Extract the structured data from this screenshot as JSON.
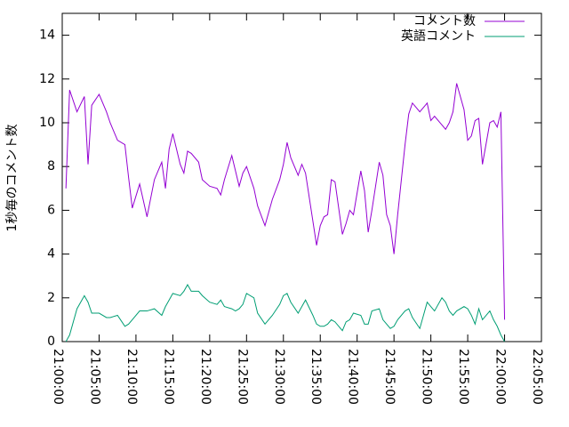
{
  "chart_data": {
    "type": "line",
    "ylabel": "1秒毎のコメント数",
    "x": [
      "21:00:30",
      "21:01:00",
      "21:02:00",
      "21:03:00",
      "21:03:30",
      "21:04:00",
      "21:05:00",
      "21:06:00",
      "21:06:30",
      "21:07:30",
      "21:08:30",
      "21:09:00",
      "21:09:30",
      "21:10:30",
      "21:11:30",
      "21:12:30",
      "21:13:30",
      "21:14:00",
      "21:14:30",
      "21:15:00",
      "21:16:00",
      "21:16:30",
      "21:17:00",
      "21:17:30",
      "21:18:30",
      "21:19:00",
      "21:20:00",
      "21:21:00",
      "21:21:30",
      "21:22:00",
      "21:23:00",
      "21:23:30",
      "21:24:00",
      "21:24:30",
      "21:25:00",
      "21:26:00",
      "21:26:30",
      "21:27:30",
      "21:28:30",
      "21:29:30",
      "21:30:00",
      "21:30:30",
      "21:31:00",
      "21:32:00",
      "21:32:30",
      "21:33:00",
      "21:34:00",
      "21:34:30",
      "21:35:00",
      "21:35:30",
      "21:36:00",
      "21:36:30",
      "21:37:00",
      "21:38:00",
      "21:38:30",
      "21:39:00",
      "21:39:30",
      "21:40:30",
      "21:41:00",
      "21:41:30",
      "21:42:00",
      "21:43:00",
      "21:43:30",
      "21:44:00",
      "21:44:30",
      "21:45:00",
      "21:45:30",
      "21:46:30",
      "21:47:00",
      "21:47:30",
      "21:48:30",
      "21:49:00",
      "21:49:30",
      "21:50:00",
      "21:50:30",
      "21:51:30",
      "21:52:00",
      "21:52:30",
      "21:53:00",
      "21:53:30",
      "21:54:30",
      "21:55:00",
      "21:55:30",
      "21:56:00",
      "21:56:30",
      "21:57:00",
      "21:58:00",
      "21:58:30",
      "21:59:00",
      "21:59:30",
      "22:00:00"
    ],
    "series": [
      {
        "name": "コメント数",
        "color": "#9400d3",
        "values": [
          7.0,
          11.5,
          10.5,
          11.2,
          8.1,
          10.8,
          11.3,
          10.5,
          10.0,
          9.2,
          9.0,
          7.5,
          6.1,
          7.2,
          5.7,
          7.4,
          8.2,
          7.0,
          8.8,
          9.5,
          8.1,
          7.7,
          8.7,
          8.6,
          8.2,
          7.4,
          7.1,
          7.0,
          6.7,
          7.4,
          8.5,
          7.8,
          7.1,
          7.7,
          8.0,
          7.0,
          6.2,
          5.3,
          6.5,
          7.4,
          8.1,
          9.1,
          8.4,
          7.6,
          8.1,
          7.7,
          5.5,
          4.4,
          5.3,
          5.7,
          5.8,
          7.4,
          7.3,
          4.9,
          5.4,
          6.0,
          5.8,
          7.8,
          6.9,
          5.0,
          6.0,
          8.2,
          7.6,
          5.8,
          5.3,
          4.0,
          5.8,
          9.0,
          10.4,
          10.9,
          10.5,
          10.7,
          10.9,
          10.1,
          10.3,
          9.9,
          9.7,
          10.0,
          10.5,
          11.8,
          10.6,
          9.2,
          9.4,
          10.1,
          10.2,
          8.1,
          10.0,
          10.1,
          9.8,
          10.5,
          1.0
        ]
      },
      {
        "name": "英語コメント",
        "color": "#009e73",
        "values": [
          0.0,
          0.3,
          1.5,
          2.1,
          1.8,
          1.3,
          1.3,
          1.1,
          1.1,
          1.2,
          0.7,
          0.8,
          1.0,
          1.4,
          1.4,
          1.5,
          1.2,
          1.6,
          1.9,
          2.2,
          2.1,
          2.3,
          2.6,
          2.3,
          2.3,
          2.1,
          1.8,
          1.7,
          1.9,
          1.6,
          1.5,
          1.4,
          1.5,
          1.7,
          2.2,
          2.0,
          1.3,
          0.8,
          1.2,
          1.7,
          2.1,
          2.2,
          1.8,
          1.3,
          1.6,
          1.9,
          1.2,
          0.8,
          0.7,
          0.7,
          0.8,
          1.0,
          0.9,
          0.5,
          0.9,
          1.0,
          1.3,
          1.2,
          0.8,
          0.8,
          1.4,
          1.5,
          1.0,
          0.8,
          0.6,
          0.7,
          1.0,
          1.4,
          1.5,
          1.1,
          0.6,
          1.2,
          1.8,
          1.6,
          1.4,
          2.0,
          1.8,
          1.4,
          1.2,
          1.4,
          1.6,
          1.5,
          1.2,
          0.8,
          1.5,
          1.0,
          1.4,
          1.0,
          0.7,
          0.3,
          0.0
        ]
      }
    ],
    "xlim": [
      "21:00:00",
      "22:05:00"
    ],
    "xticks": [
      "21:00:00",
      "21:05:00",
      "21:10:00",
      "21:15:00",
      "21:20:00",
      "21:25:00",
      "21:30:00",
      "21:35:00",
      "21:40:00",
      "21:45:00",
      "21:50:00",
      "21:55:00",
      "22:00:00",
      "22:05:00"
    ],
    "ylim": [
      0,
      15
    ],
    "yticks": [
      0,
      2,
      4,
      6,
      8,
      10,
      12,
      14
    ],
    "legend": "top-right"
  }
}
